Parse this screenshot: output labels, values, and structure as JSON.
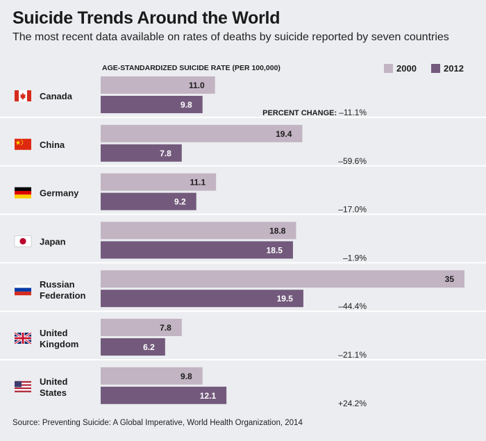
{
  "title": "Suicide Trends Around the World",
  "subtitle": "The most recent data available on rates of deaths by suicide reported by seven countries",
  "axis_label": "AGE-STANDARDIZED SUICIDE RATE (PER 100,000)",
  "percent_change_label": "PERCENT CHANGE:",
  "source": "Source: Preventing Suicide: A Global Imperative, World Health Organization, 2014",
  "colors": {
    "y2000": "#c3b4c3",
    "y2012": "#735a7c",
    "divider": "#ffffff",
    "background": "#ebedf0"
  },
  "chart_data": {
    "type": "bar",
    "orientation": "horizontal",
    "title": "Suicide Trends Around the World",
    "subtitle": "The most recent data available on rates of deaths by suicide reported by seven countries",
    "xlabel": "AGE-STANDARDIZED SUICIDE RATE (PER 100,000)",
    "xlim": [
      0,
      35
    ],
    "legend": "top-right",
    "grid": false,
    "categories": [
      "Canada",
      "China",
      "Germany",
      "Japan",
      "Russian Federation",
      "United Kingdom",
      "United States"
    ],
    "category_lines": [
      [
        "Canada"
      ],
      [
        "China"
      ],
      [
        "Germany"
      ],
      [
        "Japan"
      ],
      [
        "Russian",
        "Federation"
      ],
      [
        "United",
        "Kingdom"
      ],
      [
        "United",
        "States"
      ]
    ],
    "flags": [
      "canada-flag",
      "china-flag",
      "germany-flag",
      "japan-flag",
      "russia-flag",
      "uk-flag",
      "usa-flag"
    ],
    "series": [
      {
        "name": "2000",
        "values": [
          11.0,
          19.4,
          11.1,
          18.8,
          35,
          7.8,
          9.8
        ],
        "labels": [
          "11.0",
          "19.4",
          "11.1",
          "18.8",
          "35",
          "7.8",
          "9.8"
        ]
      },
      {
        "name": "2012",
        "values": [
          9.8,
          7.8,
          9.2,
          18.5,
          19.5,
          6.2,
          12.1
        ],
        "labels": [
          "9.8",
          "7.8",
          "9.2",
          "18.5",
          "19.5",
          "6.2",
          "12.1"
        ]
      }
    ],
    "percent_change": [
      "–11.1%",
      "–59.6%",
      "–17.0%",
      "–1.9%",
      "–44.4%",
      "–21.1%",
      "+24.2%"
    ]
  }
}
